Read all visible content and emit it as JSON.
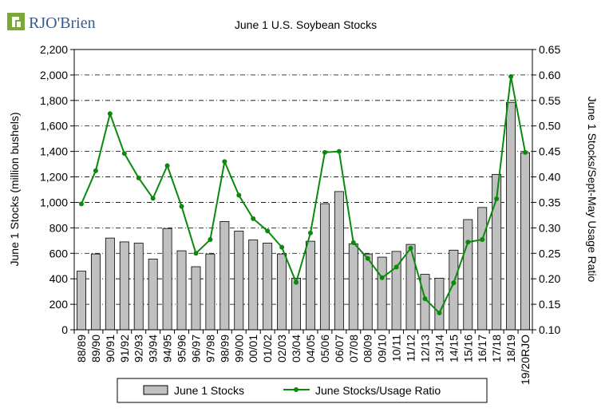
{
  "logo": {
    "brand": "RJO'Brien"
  },
  "chart_data": {
    "type": "bar+line",
    "title": "June 1 U.S. Soybean Stocks",
    "categories": [
      "88/89",
      "89/90",
      "90/91",
      "91/92",
      "92/93",
      "93/94",
      "94/95",
      "95/96",
      "96/97",
      "97/98",
      "98/99",
      "99/00",
      "00/01",
      "01/02",
      "02/03",
      "03/04",
      "04/05",
      "05/06",
      "06/07",
      "07/08",
      "08/09",
      "09/10",
      "10/11",
      "11/12",
      "12/13",
      "13/14",
      "14/15",
      "15/16",
      "16/17",
      "17/18",
      "18/19",
      "19/20RJO"
    ],
    "ylabel_left": "June 1 Stocks (million bushels)",
    "ylabel_right": "June 1 Stocks/Sept-May Usage Ratio",
    "ylim_left": [
      0,
      2200
    ],
    "ylim_right": [
      0.1,
      0.65
    ],
    "yticks_left": [
      "0",
      "200",
      "400",
      "600",
      "800",
      "1,000",
      "1,200",
      "1,400",
      "1,600",
      "1,800",
      "2,000",
      "2,200"
    ],
    "yticks_right": [
      "0.10",
      "0.15",
      "0.20",
      "0.25",
      "0.30",
      "0.35",
      "0.40",
      "0.45",
      "0.50",
      "0.55",
      "0.60",
      "0.65"
    ],
    "grid": "horizontal dash-dot",
    "legend_position": "bottom",
    "series": [
      {
        "name": "June 1 Stocks",
        "kind": "bar",
        "axis": "left",
        "color": "#c0c0c0",
        "values": [
          460,
          595,
          720,
          690,
          680,
          555,
          795,
          620,
          495,
          595,
          850,
          775,
          705,
          680,
          595,
          405,
          695,
          990,
          1085,
          675,
          595,
          570,
          615,
          670,
          435,
          405,
          625,
          865,
          960,
          1220,
          1785,
          1390
        ]
      },
      {
        "name": "June Stocks/Usage Ratio",
        "kind": "line",
        "axis": "right",
        "color": "#0a8a0a",
        "values": [
          0.347,
          0.412,
          0.524,
          0.446,
          0.398,
          0.358,
          0.422,
          0.342,
          0.25,
          0.277,
          0.43,
          0.364,
          0.318,
          0.294,
          0.262,
          0.193,
          0.29,
          0.448,
          0.45,
          0.271,
          0.24,
          0.202,
          0.223,
          0.26,
          0.161,
          0.133,
          0.192,
          0.272,
          0.277,
          0.357,
          0.597,
          0.448
        ]
      }
    ]
  }
}
